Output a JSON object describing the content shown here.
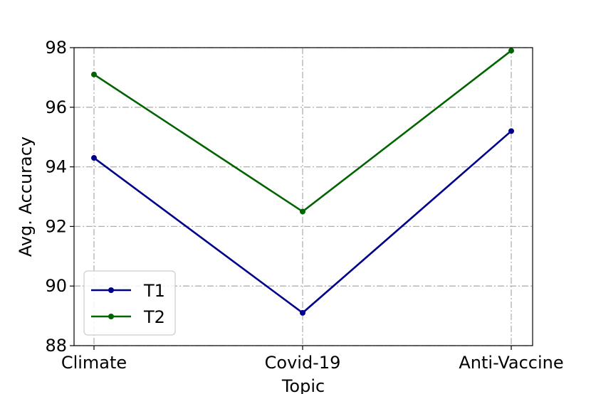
{
  "chart_data": {
    "type": "line",
    "categories": [
      "Climate",
      "Covid-19",
      "Anti-Vaccine"
    ],
    "series": [
      {
        "name": "T1",
        "values": [
          94.3,
          89.1,
          95.2
        ],
        "color": "#00008b"
      },
      {
        "name": "T2",
        "values": [
          97.1,
          92.5,
          97.9
        ],
        "color": "#006400"
      }
    ],
    "xlabel": "Topic",
    "ylabel": "Avg. Accuracy",
    "ylim": [
      88,
      98
    ],
    "yticks": [
      "88",
      "90",
      "92",
      "94",
      "96",
      "98"
    ],
    "grid": true,
    "legend": "lower-left"
  }
}
